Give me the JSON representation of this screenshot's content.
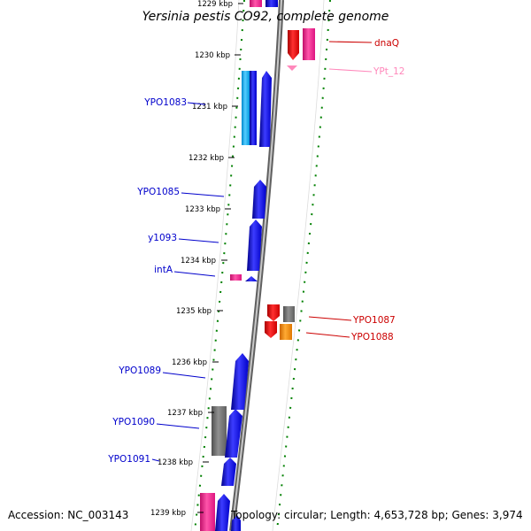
{
  "title": "Yersinia pestis CO92, complete genome",
  "accession": "Accession: NC_003143",
  "topology": "Topology: circular; Length: 4,653,728 bp; Genes: 3,974",
  "ticks": [
    {
      "label": "1229 kbp"
    },
    {
      "label": "1230 kbp"
    },
    {
      "label": "1231 kbp"
    },
    {
      "label": "1232 kbp"
    },
    {
      "label": "1233 kbp"
    },
    {
      "label": "1234 kbp"
    },
    {
      "label": "1235 kbp"
    },
    {
      "label": "1236 kbp"
    },
    {
      "label": "1237 kbp"
    },
    {
      "label": "1238 kbp"
    },
    {
      "label": "1239 kbp"
    }
  ],
  "left_labels": [
    {
      "text": "YPO1083"
    },
    {
      "text": "YPO1085"
    },
    {
      "text": "y1093"
    },
    {
      "text": "intA"
    },
    {
      "text": "YPO1089"
    },
    {
      "text": "YPO1090"
    },
    {
      "text": "YPO1091"
    }
  ],
  "right_labels": [
    {
      "text": "dnaQ"
    },
    {
      "text": "YPt_12"
    },
    {
      "text": "YPO1087"
    },
    {
      "text": "YPO1088"
    }
  ],
  "colors": {
    "forward_label": "#0000cc",
    "reverse_label": "#cc0000",
    "trna_label": "#ff88bb",
    "blue_gene": "#0000ff",
    "cyan_gene": "#00aaff",
    "red_gene": "#ff0000",
    "pink_gene": "#ff1493",
    "gray_gene": "#707070",
    "orange_gene": "#ff8c00",
    "ruler_dots": "#008000",
    "backbone": "#888888"
  }
}
